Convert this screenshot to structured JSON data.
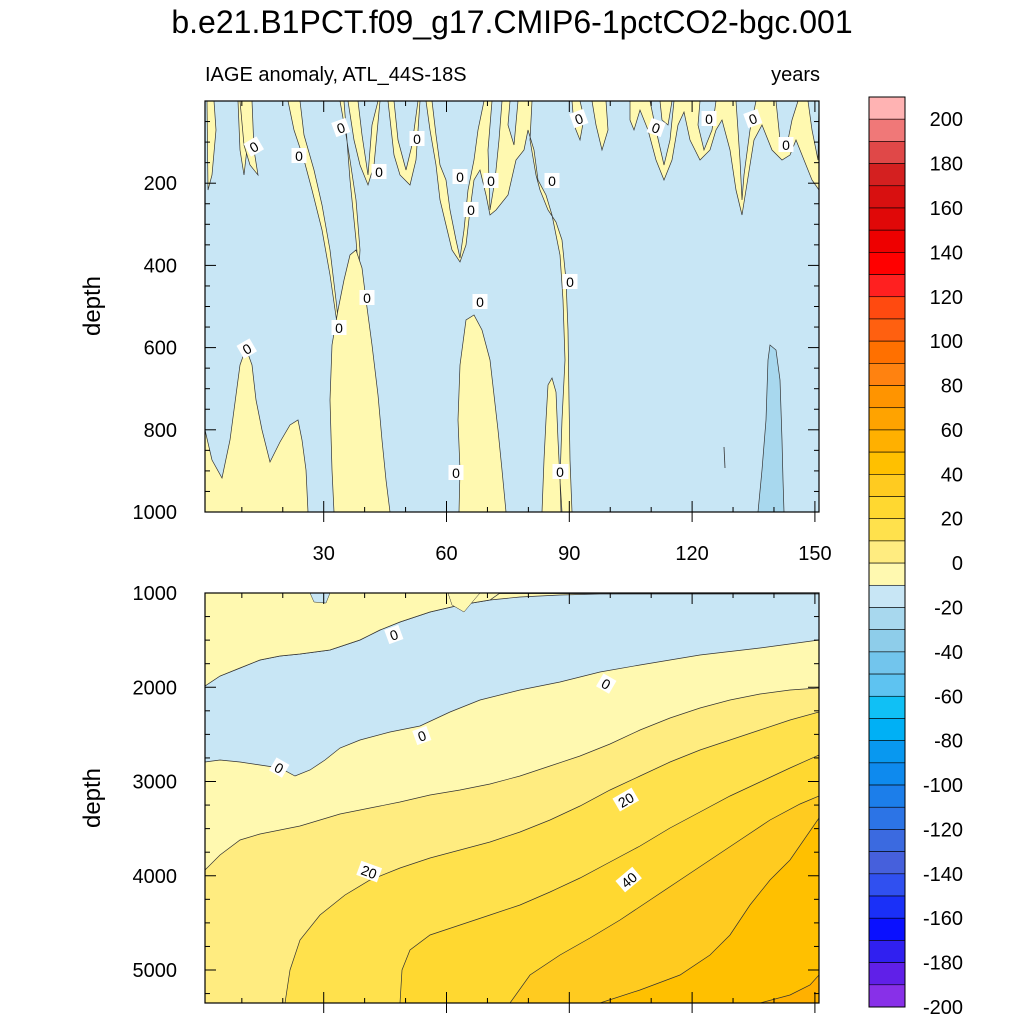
{
  "chart_data": {
    "type": "contour",
    "title": "b.e21.B1PCT.f09_g17.CMIP6-1pctCO2-bgc.001",
    "subtitle_left": "IAGE anomaly, ATL_44S-18S",
    "subtitle_right": "years",
    "xlabel": "",
    "ylabel": "depth",
    "xlim": [
      1,
      151
    ],
    "x_ticks": [
      30,
      60,
      90,
      120,
      150
    ],
    "x_tick_labels": [
      "30",
      "60",
      "90",
      "120",
      "150"
    ],
    "panels": [
      {
        "name": "upper",
        "ylim": [
          0,
          1000
        ],
        "y_ticks": [
          200,
          400,
          600,
          800,
          1000
        ],
        "y_tick_labels": [
          "200",
          "400",
          "600",
          "800",
          "1000"
        ],
        "contour_labels": [
          "0",
          "0",
          "0",
          "0",
          "0",
          "0",
          "0",
          "0",
          "0",
          "0",
          "0",
          "0",
          "0",
          "0",
          "0",
          "0",
          "0",
          "0",
          "0",
          "0",
          "0",
          "0"
        ]
      },
      {
        "name": "lower",
        "ylim": [
          1000,
          5350
        ],
        "y_ticks": [
          1000,
          2000,
          3000,
          4000,
          5000
        ],
        "y_tick_labels": [
          "1000",
          "2000",
          "3000",
          "4000",
          "5000"
        ],
        "contour_labels": [
          "0",
          "0",
          "0",
          "0",
          "20",
          "20",
          "40"
        ]
      }
    ],
    "colorbar": {
      "labels": [
        "200",
        "180",
        "160",
        "140",
        "120",
        "100",
        "80",
        "60",
        "40",
        "20",
        "0",
        "-20",
        "-40",
        "-60",
        "-80",
        "-100",
        "-120",
        "-140",
        "-160",
        "-180",
        "-200"
      ],
      "colors": [
        "#FFB3B3",
        "#F07878",
        "#E04848",
        "#D42020",
        "#D81010",
        "#E00808",
        "#EE0000",
        "#FF0000",
        "#FF2020",
        "#FF4A10",
        "#FF6010",
        "#FF7000",
        "#FF8210",
        "#FF9400",
        "#FFA300",
        "#FFB000",
        "#FFC000",
        "#FFCB20",
        "#FFD830",
        "#FFE14C",
        "#FFEC80",
        "#FFF9B0",
        "#C8E6F5",
        "#A8D8EE",
        "#8ECDEA",
        "#72C5ED",
        "#5EC3F1",
        "#10C0F5",
        "#00B0F5",
        "#0898F0",
        "#0E8AEE",
        "#1C7EEA",
        "#2C74E6",
        "#3B6AE0",
        "#4660DC",
        "#3050F0",
        "#1A30F8",
        "#0A10FF",
        "#3020F0",
        "#6020E8",
        "#8830E8"
      ]
    }
  }
}
